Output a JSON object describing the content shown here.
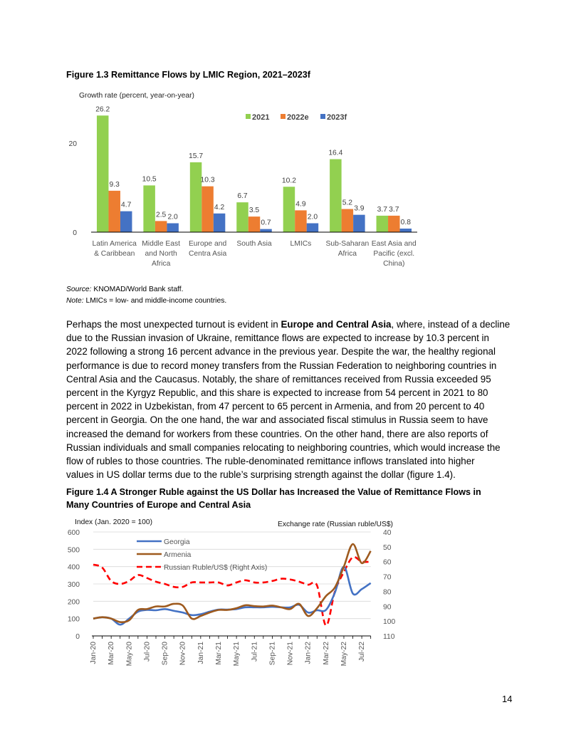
{
  "figure13": {
    "title": "Figure 1.3 Remittance Flows by LMIC Region, 2021–2023f",
    "source_label": "Source:",
    "source_text": " KNOMAD/World Bank staff.",
    "note_label": "Note:",
    "note_text": " LMICs = low- and middle-income countries."
  },
  "paragraph": {
    "line0_a": "Perhaps the most unexpected turnout is evident in ",
    "line0_bold": "Europe and Central Asia",
    "line0_b": ", where, instead of a decline",
    "lines": [
      "due to the Russian invasion of Ukraine, remittance flows are expected to increase by 10.3 percent in",
      "2022 following a strong 16 percent advance in the previous year. Despite the war, the healthy regional",
      "performance is due to record money transfers from the Russian Federation to neighboring countries in",
      "Central Asia and the Caucasus. Notably, the share of remittances received from Russia exceeded 95",
      "percent in the Kyrgyz Republic, and this share is expected to increase from 54 percent in 2021 to 80",
      "percent in 2022 in Uzbekistan, from 47 percent to 65 percent in Armenia, and from 20 percent to 40",
      "percent in Georgia. On the one hand, the war and associated fiscal stimulus in Russia seem to have",
      "increased the demand for workers from these countries. On the other hand, there are also reports of",
      "Russian individuals and small companies relocating to neighboring countries, which would increase the",
      "flow of rubles to those countries. The ruble-denominated remittance inflows translated into higher",
      "values in US dollar terms due to the ruble’s surprising strength against the dollar (figure 1.4)."
    ]
  },
  "figure14": {
    "title_line1": "Figure 1.4 A Stronger Ruble against the US Dollar has Increased the Value of Remittance Flows in",
    "title_line2": "Many Countries of Europe and Central Asia"
  },
  "page_number": "14",
  "chart_data": [
    {
      "type": "bar",
      "ylabel": "Growth rate (percent, year-on-year)",
      "ylim": [
        0,
        26.2
      ],
      "yticks": [
        "0",
        "20"
      ],
      "legend_position": "top-right",
      "categories": [
        "Latin America\n& Caribbean",
        "Middle East\nand North\nAfrica",
        "Europe and\nCentra Asia",
        "South Asia",
        "LMICs",
        "Sub-Saharan\nAfrica",
        "East Asia and\nPacific (excl.\nChina)"
      ],
      "series": [
        {
          "name": "2021",
          "color": "#92D050",
          "values": [
            26.2,
            10.5,
            15.7,
            6.7,
            10.2,
            16.4,
            3.7
          ],
          "labels": [
            "26.2",
            "10.5",
            "15.7",
            "6.7",
            "10.2",
            "16.4",
            "3.7"
          ]
        },
        {
          "name": "2022e",
          "color": "#ED7D31",
          "values": [
            9.3,
            2.5,
            10.3,
            3.5,
            4.9,
            5.2,
            3.7
          ],
          "labels": [
            "9.3",
            "2.5",
            "10.3",
            "3.5",
            "4.9",
            "5.2",
            "3.7"
          ]
        },
        {
          "name": "2023f",
          "color": "#4472C4",
          "values": [
            4.7,
            2.0,
            4.2,
            0.7,
            2.0,
            3.9,
            0.8
          ],
          "labels": [
            "4.7",
            "2.0",
            "4.2",
            "0.7",
            "2.0",
            "3.9",
            "0.8"
          ]
        }
      ]
    },
    {
      "type": "line",
      "ylabel": "Index (Jan. 2020 = 100)",
      "y2label": "Exchange rate (Russian ruble/US$)",
      "ylim": [
        0,
        600
      ],
      "y2lim_inverted": [
        40,
        110
      ],
      "yticks": [
        "0",
        "100",
        "200",
        "300",
        "400",
        "500",
        "600"
      ],
      "y2ticks": [
        "40",
        "50",
        "60",
        "70",
        "80",
        "90",
        "100",
        "110"
      ],
      "xticklabels": [
        "Jan-20",
        "Mar-20",
        "May-20",
        "Jul-20",
        "Sep-20",
        "Nov-20",
        "Jan-21",
        "Mar-21",
        "May-21",
        "Jul-21",
        "Sep-21",
        "Nov-21",
        "Jan-22",
        "Mar-22",
        "May-22",
        "Jul-22"
      ],
      "grid": true,
      "legend_position": "top-left",
      "series": [
        {
          "name": "Georgia",
          "color": "#4472C4",
          "axis": "left",
          "dash": false,
          "values": [
            100,
            108,
            100,
            65,
            100,
            140,
            150,
            148,
            155,
            145,
            135,
            120,
            125,
            140,
            152,
            152,
            155,
            165,
            165,
            165,
            168,
            165,
            165,
            180,
            135,
            148,
            150,
            250,
            400,
            245,
            270,
            305
          ]
        },
        {
          "name": "Armenia",
          "color": "#9E5A1E",
          "axis": "left",
          "dash": false,
          "values": [
            100,
            108,
            100,
            80,
            90,
            150,
            155,
            170,
            170,
            185,
            175,
            100,
            115,
            135,
            150,
            150,
            160,
            177,
            172,
            170,
            175,
            165,
            155,
            185,
            115,
            160,
            230,
            280,
            400,
            530,
            420,
            490
          ]
        },
        {
          "name": "Russian Ruble/US$ (Right Axis)",
          "color": "#FF0000",
          "axis": "right",
          "dash": true,
          "values": [
            62,
            64,
            73,
            75,
            73,
            69,
            71,
            73.5,
            75,
            77,
            77,
            74,
            74,
            74,
            74,
            76,
            74,
            72.5,
            74,
            74,
            73,
            71.5,
            72,
            73.5,
            75.5,
            76,
            103,
            80,
            67,
            57,
            60,
            60
          ]
        }
      ]
    }
  ]
}
